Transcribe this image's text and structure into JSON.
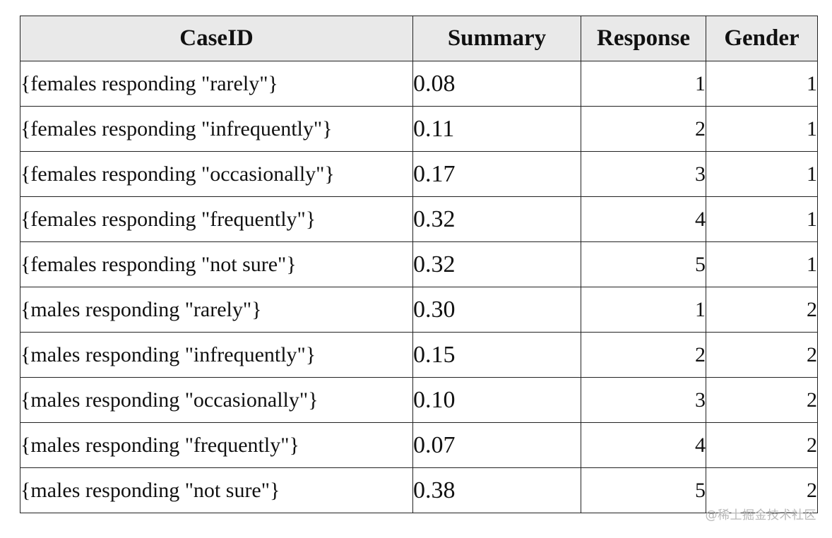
{
  "table": {
    "headers": {
      "case_id": "CaseID",
      "summary": "Summary",
      "response": "Response",
      "gender": "Gender"
    },
    "rows": [
      {
        "case_id": "{females responding \"rarely\"}",
        "summary": "0.08",
        "response": "1",
        "gender": "1"
      },
      {
        "case_id": "{females responding \"infrequently\"}",
        "summary": "0.11",
        "response": "2",
        "gender": "1"
      },
      {
        "case_id": "{females responding \"occasionally\"}",
        "summary": "0.17",
        "response": "3",
        "gender": "1"
      },
      {
        "case_id": "{females responding \"frequently\"}",
        "summary": "0.32",
        "response": "4",
        "gender": "1"
      },
      {
        "case_id": "{females responding \"not sure\"}",
        "summary": "0.32",
        "response": "5",
        "gender": "1"
      },
      {
        "case_id": "{males responding \"rarely\"}",
        "summary": "0.30",
        "response": "1",
        "gender": "2"
      },
      {
        "case_id": "{males responding \"infrequently\"}",
        "summary": "0.15",
        "response": "2",
        "gender": "2"
      },
      {
        "case_id": "{males responding \"occasionally\"}",
        "summary": "0.10",
        "response": "3",
        "gender": "2"
      },
      {
        "case_id": "{males responding \"frequently\"}",
        "summary": "0.07",
        "response": "4",
        "gender": "2"
      },
      {
        "case_id": "{males responding \"not sure\"}",
        "summary": "0.38",
        "response": "5",
        "gender": "2"
      }
    ]
  },
  "watermark": "@稀土掘金技术社区"
}
